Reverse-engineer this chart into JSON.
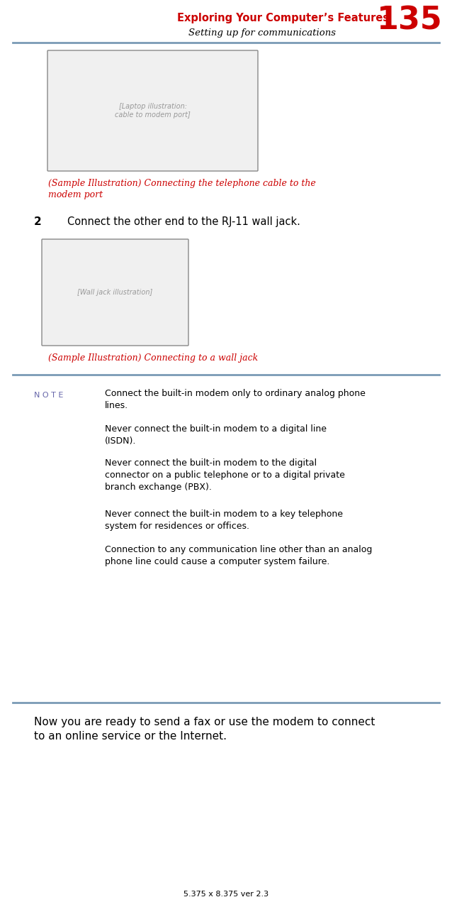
{
  "page_number": "135",
  "header_title": "Exploring Your Computer’s Features",
  "header_subtitle": "Setting up for communications",
  "header_title_color": "#CC0000",
  "header_subtitle_color": "#000000",
  "header_line_color": "#7A9BB5",
  "step_number": "2",
  "step_text": "Connect the other end to the RJ-11 wall jack.",
  "caption1_line1": "(Sample Illustration) Connecting the telephone cable to the",
  "caption1_line2": "modem port",
  "caption2": "(Sample Illustration) Connecting to a wall jack",
  "caption_color": "#CC0000",
  "note_label": "N O T E",
  "note_label_color": "#6666AA",
  "note_paragraphs": [
    "Connect the built-in modem only to ordinary analog phone\nlines.",
    "Never connect the built-in modem to a digital line\n(ISDN).",
    "Never connect the built-in modem to the digital\nconnector on a public telephone or to a digital private\nbranch exchange (PBX).",
    "Never connect the built-in modem to a key telephone\nsystem for residences or offices.",
    "Connection to any communication line other than an analog\nphone line could cause a computer system failure."
  ],
  "closing_line1": "Now you are ready to send a fax or use the modem to connect",
  "closing_line2": "to an online service or the Internet.",
  "footer_text": "5.375 x 8.375 ver 2.3",
  "background_color": "#FFFFFF",
  "text_color": "#000000",
  "divider_color": "#7A9BB5"
}
